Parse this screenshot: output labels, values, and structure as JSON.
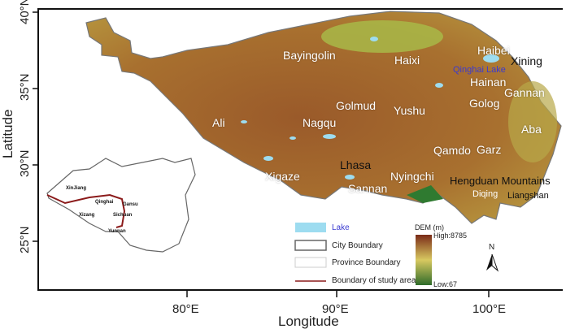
{
  "axes": {
    "ylabel": "Latitude",
    "xlabel": "Longitude",
    "yticks": [
      "40°N",
      "35°N",
      "30°N",
      "25°N"
    ],
    "xticks": [
      "80°E",
      "90°E",
      "100°E"
    ]
  },
  "regions": {
    "bayingolin": "Bayingolin",
    "haixi": "Haixi",
    "haibei": "Haibei",
    "xining": "Xining",
    "qinghai_lake": "Qinghai Lake",
    "hainan": "Hainan",
    "gannan": "Gannan",
    "golog": "Golog",
    "golmud": "Golmud",
    "yushu": "Yushu",
    "ali": "Ali",
    "nagqu": "Nagqu",
    "aba": "Aba",
    "qamdo": "Qamdo",
    "garz": "Garz",
    "lhasa": "Lhasa",
    "xigaze": "Xigaze",
    "nyingchi": "Nyingchi",
    "sannan": "Sannan",
    "hengduan": "Hengduan Mountains",
    "diqing": "Diqing",
    "liangshan": "Liangshan"
  },
  "inset": {
    "xinjiang": "XinJiang",
    "qinghai": "Qinghai",
    "gansu": "Gansu",
    "xizang": "Xizang",
    "sichuan": "Sichuan",
    "yunnan": "Yunnan"
  },
  "legend": {
    "lake": "Lake",
    "city_boundary": "City Boundary",
    "province_boundary": "Province Boundary",
    "study_area": "Boundary of study area",
    "dem_title": "DEM (m)",
    "dem_high": "High:8785",
    "dem_low": "Low:67",
    "north": "N"
  },
  "colors": {
    "lake": "#9ddcf0",
    "study_boundary": "#8b1a1a",
    "dem_high": "#7a2a18",
    "dem_mid": "#d8c860",
    "dem_low": "#2f6b2a",
    "qinghai_lake_label": "#3a3ad0"
  }
}
